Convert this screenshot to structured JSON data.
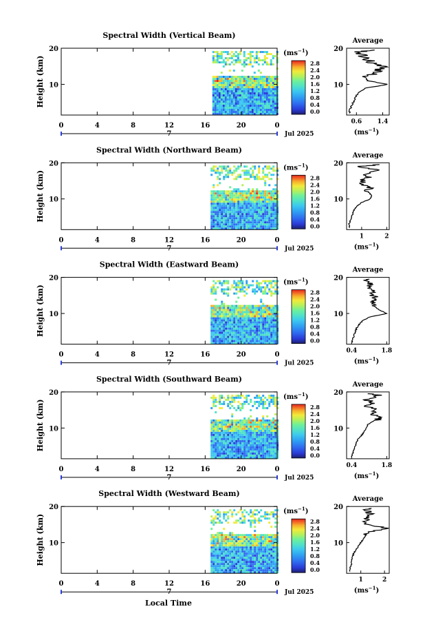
{
  "footer": {
    "xlabel": "Local Time"
  },
  "panels": [
    {
      "title": "Spectral Width (Vertical Beam)",
      "ylabel": "Height (km)",
      "date_label": "Jul 2025",
      "day_label": "7",
      "xticks": [
        "0",
        "4",
        "8",
        "12",
        "16",
        "20",
        "0"
      ],
      "yticks": [
        "10",
        "20"
      ],
      "unit_label": "(ms",
      "unit_sup": "−1",
      "avg_title": "Average",
      "avg_xticks": [
        "0.6",
        "1.4"
      ],
      "avg_yticks": [
        "10",
        "20"
      ],
      "avg_xlabel": "(ms",
      "avg_xlabel_sup": "−1",
      "avg_xlabel_close": ")"
    },
    {
      "title": "Spectral Width (Northward Beam)",
      "ylabel": "Height (km)",
      "date_label": "Jul 2025",
      "day_label": "7",
      "xticks": [
        "0",
        "4",
        "8",
        "12",
        "16",
        "20",
        "0"
      ],
      "yticks": [
        "10",
        "20"
      ],
      "unit_label": "(ms",
      "unit_sup": "−1",
      "avg_title": "Average",
      "avg_xticks": [
        "1",
        "2"
      ],
      "avg_yticks": [
        "10",
        "20"
      ],
      "avg_xlabel": "(ms",
      "avg_xlabel_sup": "−1",
      "avg_xlabel_close": ")"
    },
    {
      "title": "Spectral Width (Eastward Beam)",
      "ylabel": "Height (km)",
      "date_label": "Jul 2025",
      "day_label": "7",
      "xticks": [
        "0",
        "4",
        "8",
        "12",
        "16",
        "20",
        "0"
      ],
      "yticks": [
        "10",
        "20"
      ],
      "unit_label": "(ms",
      "unit_sup": "−1",
      "avg_title": "Average",
      "avg_xticks": [
        "0.4",
        "1.8"
      ],
      "avg_yticks": [
        "10",
        "20"
      ],
      "avg_xlabel": "(ms",
      "avg_xlabel_sup": "−1",
      "avg_xlabel_close": ")"
    },
    {
      "title": "Spectral Width (Southward Beam)",
      "ylabel": "Height (km)",
      "date_label": "Jul 2025",
      "day_label": "7",
      "xticks": [
        "0",
        "4",
        "8",
        "12",
        "16",
        "20",
        "0"
      ],
      "yticks": [
        "10",
        "20"
      ],
      "unit_label": "(ms",
      "unit_sup": "−1",
      "avg_title": "Average",
      "avg_xticks": [
        "0.4",
        "1.8"
      ],
      "avg_yticks": [
        "10",
        "20"
      ],
      "avg_xlabel": "(ms",
      "avg_xlabel_sup": "−1",
      "avg_xlabel_close": ")"
    },
    {
      "title": "Spectral Width (Westward Beam)",
      "ylabel": "Height (km)",
      "date_label": "Jul 2025",
      "day_label": "7",
      "xticks": [
        "0",
        "4",
        "8",
        "12",
        "16",
        "20",
        "0"
      ],
      "yticks": [
        "10",
        "20"
      ],
      "unit_label": "(ms",
      "unit_sup": "−1",
      "avg_title": "Average",
      "avg_xticks": [
        "1",
        "2"
      ],
      "avg_yticks": [
        "10",
        "20"
      ],
      "avg_xlabel": "(ms",
      "avg_xlabel_sup": "−1",
      "avg_xlabel_close": ")"
    }
  ],
  "colorbar": {
    "ticks": [
      "0.0",
      "0.4",
      "0.8",
      "1.2",
      "1.6",
      "2.0",
      "2.4",
      "2.8"
    ],
    "colors": [
      "#1d1f6e",
      "#2a3bd6",
      "#2f6cf0",
      "#2f9ff2",
      "#3cc8f0",
      "#4fe1c8",
      "#6ef09a",
      "#b6f05a",
      "#f2ea3a",
      "#f7b02c",
      "#f26a26",
      "#e3251f"
    ]
  },
  "chart_data": [
    {
      "type": "heatmap",
      "title": "Spectral Width (Vertical Beam)",
      "xlabel": "Local Time",
      "ylabel": "Height (km)",
      "x_range_hours": [
        0,
        24
      ],
      "y_range_km": [
        1.5,
        20
      ],
      "data_start_hour": 16.8,
      "colorbar_range": [
        0.0,
        2.8
      ],
      "colorbar_unit": "ms-1",
      "profile": {
        "title": "Average",
        "x_range": [
          0.3,
          1.6
        ],
        "heights_km": [
          2,
          3,
          4,
          5,
          6,
          7,
          8,
          9,
          10,
          11,
          12,
          13,
          14,
          15,
          16,
          17,
          18,
          19,
          19.6
        ],
        "values": [
          0.38,
          0.4,
          0.45,
          0.5,
          0.55,
          0.6,
          0.7,
          0.9,
          1.55,
          0.95,
          0.85,
          1.2,
          1.3,
          1.4,
          1.05,
          0.95,
          0.8,
          0.7,
          1.3
        ]
      }
    },
    {
      "type": "heatmap",
      "title": "Spectral Width (Northward Beam)",
      "xlabel": "Local Time",
      "ylabel": "Height (km)",
      "x_range_hours": [
        0,
        24
      ],
      "y_range_km": [
        1.5,
        20
      ],
      "data_start_hour": 16.6,
      "colorbar_range": [
        0.0,
        2.8
      ],
      "colorbar_unit": "ms-1",
      "profile": {
        "title": "Average",
        "x_range": [
          0.4,
          2.1
        ],
        "heights_km": [
          2,
          3,
          4,
          5,
          6,
          7,
          8,
          9,
          10,
          11,
          12,
          13,
          14,
          15,
          16,
          17,
          18,
          19,
          19.6
        ],
        "values": [
          0.5,
          0.5,
          0.55,
          0.6,
          0.65,
          0.7,
          0.8,
          1.0,
          1.35,
          1.4,
          1.25,
          1.3,
          1.1,
          0.95,
          1.3,
          1.1,
          1.6,
          0.9,
          1.9
        ]
      }
    },
    {
      "type": "heatmap",
      "title": "Spectral Width (Eastward Beam)",
      "xlabel": "Local Time",
      "ylabel": "Height (km)",
      "x_range_hours": [
        0,
        24
      ],
      "y_range_km": [
        1.5,
        20
      ],
      "data_start_hour": 16.6,
      "colorbar_range": [
        0.0,
        2.8
      ],
      "colorbar_unit": "ms-1",
      "profile": {
        "title": "Average",
        "x_range": [
          0.2,
          1.9
        ],
        "heights_km": [
          2,
          3,
          4,
          5,
          6,
          7,
          8,
          9,
          10,
          11,
          12,
          13,
          14,
          15,
          16,
          17,
          18,
          19,
          19.6
        ],
        "values": [
          0.42,
          0.45,
          0.5,
          0.55,
          0.6,
          0.7,
          0.85,
          1.1,
          1.8,
          1.5,
          1.3,
          1.25,
          1.45,
          1.2,
          1.35,
          1.0,
          1.2,
          0.9,
          1.3
        ]
      }
    },
    {
      "type": "heatmap",
      "title": "Spectral Width (Southward Beam)",
      "xlabel": "Local Time",
      "ylabel": "Height (km)",
      "x_range_hours": [
        0,
        24
      ],
      "y_range_km": [
        1.5,
        20
      ],
      "data_start_hour": 16.6,
      "colorbar_range": [
        0.0,
        2.8
      ],
      "colorbar_unit": "ms-1",
      "profile": {
        "title": "Average",
        "x_range": [
          0.2,
          1.9
        ],
        "heights_km": [
          2,
          3,
          4,
          5,
          6,
          7,
          8,
          9,
          10,
          11,
          12,
          13,
          14,
          15,
          16,
          17,
          18,
          19,
          19.6
        ],
        "values": [
          0.4,
          0.45,
          0.5,
          0.55,
          0.6,
          0.65,
          0.8,
          0.9,
          1.0,
          1.05,
          1.3,
          1.65,
          1.15,
          1.4,
          1.05,
          1.25,
          1.0,
          1.5,
          1.1
        ]
      }
    },
    {
      "type": "heatmap",
      "title": "Spectral Width (Westward Beam)",
      "xlabel": "Local Time",
      "ylabel": "Height (km)",
      "x_range_hours": [
        0,
        24
      ],
      "y_range_km": [
        1.5,
        20
      ],
      "data_start_hour": 16.6,
      "colorbar_range": [
        0.0,
        2.8
      ],
      "colorbar_unit": "ms-1",
      "profile": {
        "title": "Average",
        "x_range": [
          0.4,
          2.2
        ],
        "heights_km": [
          2,
          3,
          4,
          5,
          6,
          7,
          8,
          9,
          10,
          11,
          12,
          13,
          14,
          15,
          16,
          17,
          18,
          19,
          19.6
        ],
        "values": [
          0.55,
          0.55,
          0.6,
          0.6,
          0.65,
          0.7,
          0.8,
          0.9,
          1.0,
          1.1,
          1.2,
          1.45,
          2.15,
          1.3,
          1.25,
          1.15,
          1.4,
          1.2,
          1.5
        ]
      }
    }
  ]
}
